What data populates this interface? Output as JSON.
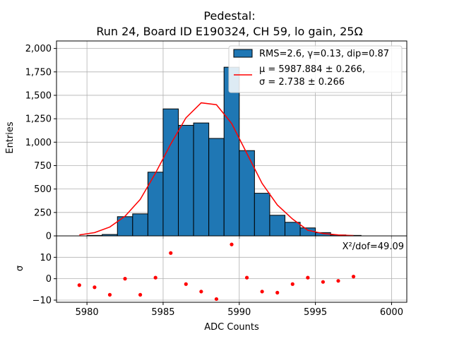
{
  "chart_data": {
    "type": "bar",
    "title_line1": "Pedestal:",
    "title_line2": "Run 24, Board ID E190324, CH 59, lo gain, 25Ω",
    "xlabel": "ADC Counts",
    "ylabel_top": "Entries",
    "ylabel_bottom": "σ",
    "xlim": [
      5978,
      6001
    ],
    "ylim_top": [
      0,
      2080
    ],
    "ylim_bottom": [
      -11,
      20
    ],
    "xticks": [
      5980,
      5985,
      5990,
      5995,
      6000
    ],
    "yticks_top": [
      0,
      250,
      500,
      750,
      1000,
      1250,
      1500,
      1750,
      2000
    ],
    "yticks_bottom": [
      -10,
      0,
      10
    ],
    "grid": true,
    "legend_position": "top-right",
    "legend": {
      "hist_label": "RMS=2.6, γ=0.13, dip=0.87",
      "fit_label_line1": "μ = 5987.884 ± 0.266,",
      "fit_label_line2": "σ = 2.738 ± 0.266"
    },
    "annotation": "X²/dof=49.09",
    "colors": {
      "bars": "#1f77b4",
      "fit": "#ff0000",
      "residuals": "#ff0000"
    },
    "histogram": {
      "bin_edges": [
        5980,
        5981,
        5982,
        5983,
        5984,
        5985,
        5986,
        5987,
        5988,
        5989,
        5990,
        5991,
        5992,
        5993,
        5994,
        5995,
        5996,
        5997,
        5998
      ],
      "counts": [
        5,
        15,
        205,
        235,
        680,
        1355,
        1180,
        1205,
        1040,
        1800,
        910,
        455,
        220,
        145,
        85,
        35,
        10,
        5
      ]
    },
    "fit_curve": {
      "x": [
        5979.5,
        5980.5,
        5981.5,
        5982.5,
        5983.5,
        5984.5,
        5985.5,
        5986.5,
        5987.5,
        5988.5,
        5989.5,
        5990.5,
        5991.5,
        5992.5,
        5993.5,
        5994.5,
        5995.5,
        5996.5,
        5997.5
      ],
      "y": [
        10,
        35,
        95,
        210,
        390,
        670,
        980,
        1260,
        1420,
        1400,
        1200,
        880,
        560,
        330,
        180,
        60,
        25,
        10,
        3
      ]
    },
    "residuals": {
      "x": [
        5979.5,
        5980.5,
        5981.5,
        5982.5,
        5983.5,
        5984.5,
        5985.5,
        5986.5,
        5987.5,
        5988.5,
        5989.5,
        5990.5,
        5991.5,
        5992.5,
        5993.5,
        5994.5,
        5995.5,
        5996.5,
        5997.5
      ],
      "y": [
        -3,
        -4,
        -7.5,
        0,
        -7.5,
        0.5,
        12,
        -2.5,
        -6,
        -9.5,
        16,
        0.5,
        -6,
        -6.5,
        -2.5,
        0.5,
        -1.5,
        -1,
        1
      ]
    }
  }
}
